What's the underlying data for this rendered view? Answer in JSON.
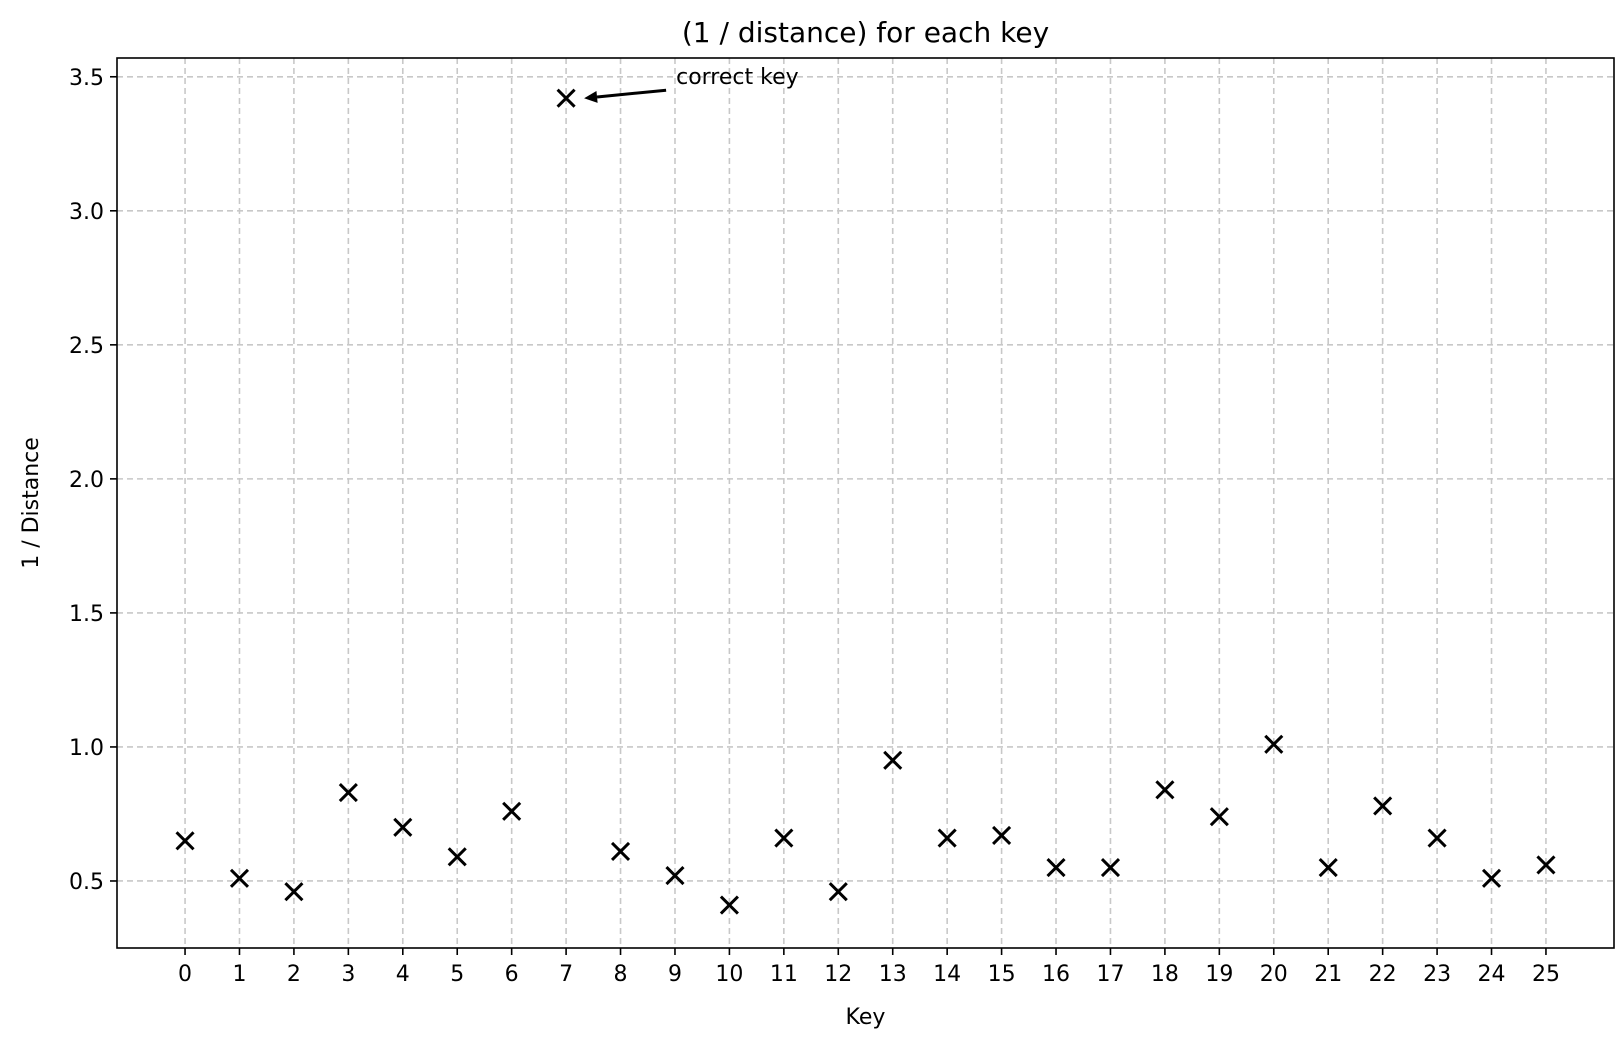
{
  "chart_data": {
    "type": "scatter",
    "title": "(1 / distance) for each key",
    "xlabel": "Key",
    "ylabel": "1 / Distance",
    "x": [
      0,
      1,
      2,
      3,
      4,
      5,
      6,
      7,
      8,
      9,
      10,
      11,
      12,
      13,
      14,
      15,
      16,
      17,
      18,
      19,
      20,
      21,
      22,
      23,
      24,
      25
    ],
    "y": [
      0.65,
      0.51,
      0.46,
      0.83,
      0.7,
      0.59,
      0.76,
      3.42,
      0.61,
      0.52,
      0.41,
      0.66,
      0.46,
      0.95,
      0.66,
      0.67,
      0.55,
      0.55,
      0.84,
      0.74,
      1.01,
      0.55,
      0.78,
      0.66,
      0.51,
      0.56
    ],
    "xlim": [
      -1.25,
      26.25
    ],
    "ylim": [
      0.25,
      3.57
    ],
    "yticks": [
      0.5,
      1.0,
      1.5,
      2.0,
      2.5,
      3.0,
      3.5
    ],
    "ytick_labels": [
      "0.5",
      "1.0",
      "1.5",
      "2.0",
      "2.5",
      "3.0",
      "3.5"
    ],
    "grid": true,
    "marker": "x",
    "marker_color": "#000000",
    "grid_color": "#c8c8c8",
    "annotation": {
      "text": "correct key",
      "x": 7,
      "y": 3.42
    }
  }
}
